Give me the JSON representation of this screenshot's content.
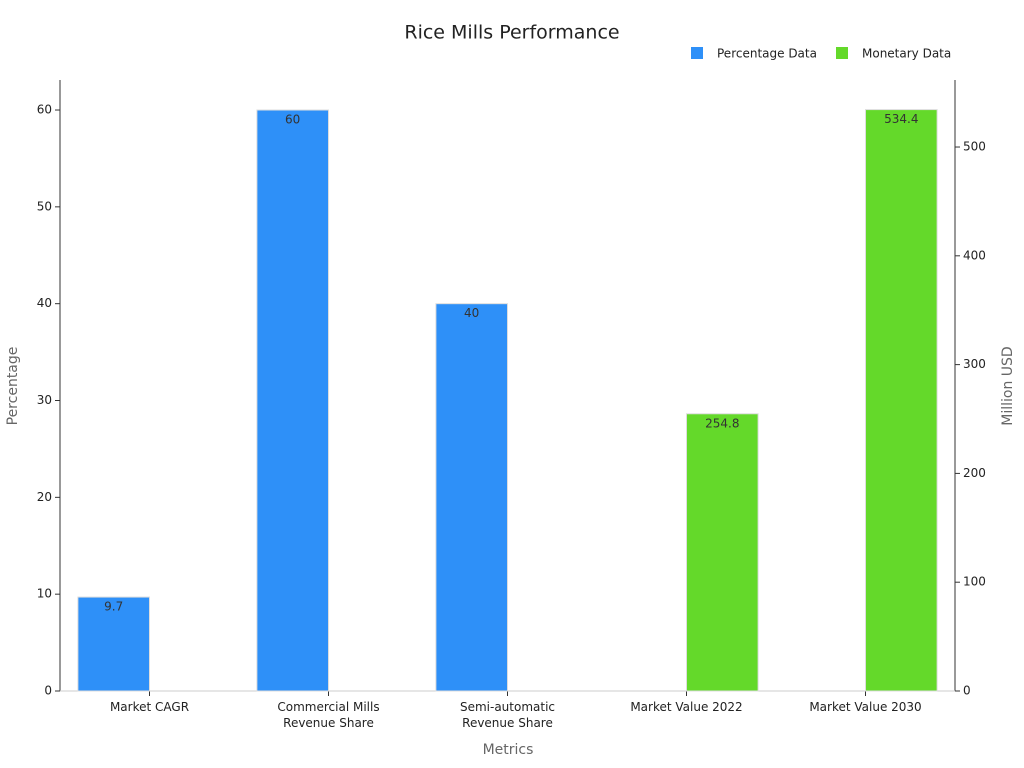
{
  "chart_data": {
    "type": "bar",
    "title": "Rice Mills Performance",
    "x_label": "Metrics",
    "y_label": "Percentage",
    "y2_label": "Million USD",
    "categories": [
      "Market CAGR",
      "Commercial Mills\nRevenue Share",
      "Semi-automatic\nRevenue Share",
      "Market Value 2022",
      "Market Value 2030"
    ],
    "series": [
      {
        "name": "Percentage Data",
        "color": "#2e90f8",
        "values": [
          9.7,
          60,
          40,
          null,
          null
        ]
      },
      {
        "name": "Monetary Data",
        "color": "#64d92a",
        "values": [
          null,
          null,
          null,
          254.8,
          534.4
        ],
        "axis": "y2"
      }
    ],
    "ylim": [
      0,
      63.1
    ],
    "yticks": [
      0,
      10,
      20,
      30,
      40,
      50,
      60
    ],
    "y2lim": [
      0,
      561.6
    ],
    "y2ticks": [
      0,
      100,
      200,
      300,
      400,
      500
    ],
    "legend": "top-right"
  }
}
